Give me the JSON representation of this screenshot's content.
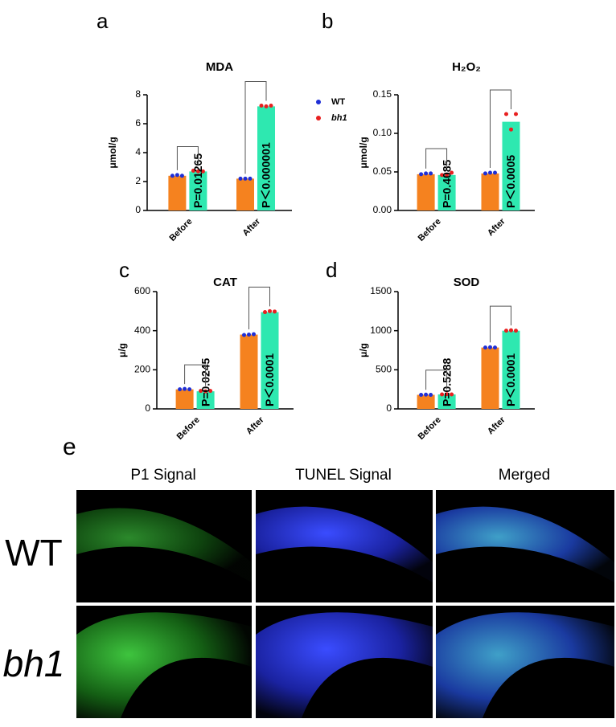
{
  "chart_data": [
    {
      "type": "bar",
      "label": "a",
      "title": "MDA",
      "ylabel": "μmol/g",
      "categories": [
        "Before",
        "After"
      ],
      "series": [
        {
          "name": "WT",
          "color": "#f5821f",
          "point_color": "#1f2fd6",
          "values": [
            2.4,
            2.2
          ],
          "points": [
            [
              2.4,
              2.45,
              2.4
            ],
            [
              2.2,
              2.2,
              2.2
            ]
          ]
        },
        {
          "name": "bh1",
          "color": "#2ee8b0",
          "point_color": "#e82020",
          "values": [
            2.7,
            7.2
          ],
          "points": [
            [
              2.75,
              2.7,
              2.7
            ],
            [
              7.25,
              7.2,
              7.25
            ]
          ]
        }
      ],
      "p_values": [
        "P=0.01265",
        "P＜0.000001"
      ],
      "ylim": [
        0,
        8
      ],
      "yticks": [
        0,
        2,
        4,
        6,
        8
      ],
      "legend": true
    },
    {
      "type": "bar",
      "label": "b",
      "title": "H₂O₂",
      "ylabel": "μmol/g",
      "categories": [
        "Before",
        "After"
      ],
      "series": [
        {
          "name": "WT",
          "color": "#f5821f",
          "point_color": "#1f2fd6",
          "values": [
            0.047,
            0.048
          ],
          "points": [
            [
              0.047,
              0.048,
              0.048
            ],
            [
              0.048,
              0.049,
              0.049
            ]
          ]
        },
        {
          "name": "bh1",
          "color": "#2ee8b0",
          "point_color": "#e82020",
          "values": [
            0.046,
            0.115
          ],
          "points": [
            [
              0.046,
              0.046,
              0.049
            ],
            [
              0.125,
              0.105,
              0.125
            ]
          ]
        }
      ],
      "p_values": [
        "P=0.4085",
        "P＜0.0005"
      ],
      "ylim": [
        0,
        0.15
      ],
      "yticks": [
        {
          "value": 0,
          "label": "0.00"
        },
        {
          "value": 0.05,
          "label": "0.05"
        },
        {
          "value": 0.1,
          "label": "0.10"
        },
        {
          "value": 0.15,
          "label": "0.15"
        }
      ],
      "legend": false
    },
    {
      "type": "bar",
      "label": "c",
      "title": "CAT",
      "ylabel": "μ/g",
      "categories": [
        "Before",
        "After"
      ],
      "series": [
        {
          "name": "WT",
          "color": "#f5821f",
          "point_color": "#1f2fd6",
          "values": [
            100,
            380
          ],
          "points": [
            [
              100,
              102,
              100
            ],
            [
              378,
              380,
              382
            ]
          ]
        },
        {
          "name": "bh1",
          "color": "#2ee8b0",
          "point_color": "#e82020",
          "values": [
            90,
            495
          ],
          "points": [
            [
              92,
              90,
              92
            ],
            [
              495,
              500,
              498
            ]
          ]
        }
      ],
      "p_values": [
        "P=0.0245",
        "P＜0.0001"
      ],
      "ylim": [
        0,
        600
      ],
      "yticks": [
        0,
        200,
        400,
        600
      ],
      "legend": false
    },
    {
      "type": "bar",
      "label": "d",
      "title": "SOD",
      "ylabel": "μ/g",
      "categories": [
        "Before",
        "After"
      ],
      "series": [
        {
          "name": "WT",
          "color": "#f5821f",
          "point_color": "#1f2fd6",
          "values": [
            180,
            785
          ],
          "points": [
            [
              180,
              182,
              180
            ],
            [
              785,
              788,
              785
            ]
          ]
        },
        {
          "name": "bh1",
          "color": "#2ee8b0",
          "point_color": "#e82020",
          "values": [
            185,
            1000
          ],
          "points": [
            [
              185,
              188,
              185
            ],
            [
              1000,
              1005,
              1000
            ]
          ]
        }
      ],
      "p_values": [
        "P=0.5288",
        "P＜0.0001"
      ],
      "ylim": [
        0,
        1500
      ],
      "yticks": [
        0,
        500,
        1000,
        1500
      ],
      "legend": false
    }
  ],
  "panel_e": {
    "label": "e",
    "columns": [
      "P1 Signal",
      "TUNEL Signal",
      "Merged"
    ],
    "rows": [
      "WT",
      "bh1"
    ]
  }
}
